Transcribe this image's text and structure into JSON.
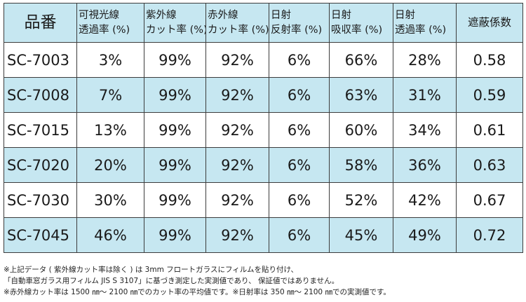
{
  "table": {
    "headers": [
      {
        "line1": "品番",
        "line2": ""
      },
      {
        "line1": "可視光線",
        "line2": "透過率 (%)"
      },
      {
        "line1": "紫外線",
        "line2": "カット率 (%)"
      },
      {
        "line1": "赤外線",
        "line2": "カット率 (%)"
      },
      {
        "line1": "日射",
        "line2": "反射率 (%)"
      },
      {
        "line1": "日射",
        "line2": "吸収率 (%)"
      },
      {
        "line1": "日射",
        "line2": "透過率 (%)"
      },
      {
        "line1": "遮蔽係数",
        "line2": ""
      }
    ],
    "rows": [
      [
        "SC-7003",
        "3%",
        "99%",
        "92%",
        "6%",
        "66%",
        "28%",
        "0.58"
      ],
      [
        "SC-7008",
        "7%",
        "99%",
        "92%",
        "6%",
        "63%",
        "31%",
        "0.59"
      ],
      [
        "SC-7015",
        "13%",
        "99%",
        "92%",
        "6%",
        "60%",
        "34%",
        "0.61"
      ],
      [
        "SC-7020",
        "20%",
        "99%",
        "92%",
        "6%",
        "58%",
        "36%",
        "0.63"
      ],
      [
        "SC-7030",
        "30%",
        "99%",
        "92%",
        "6%",
        "52%",
        "42%",
        "0.67"
      ],
      [
        "SC-7045",
        "46%",
        "99%",
        "92%",
        "6%",
        "45%",
        "49%",
        "0.72"
      ]
    ],
    "shade_color": "#c6e7f1"
  },
  "notes": [
    "※上記データ ( 紫外線カット率は除く ) は 3mm フロートガラスにフィルムを貼り付け、",
    "「自動車窓ガラス用フィルム JIS S 3107」に基づき測定した実測値であり、 保証値ではありません。",
    "※赤外線カット率は 1500 ㎚～ 2100 ㎚でのカット率の平均値です。※日射率は 350 ㎚～ 2100 ㎚での実測値です。"
  ]
}
